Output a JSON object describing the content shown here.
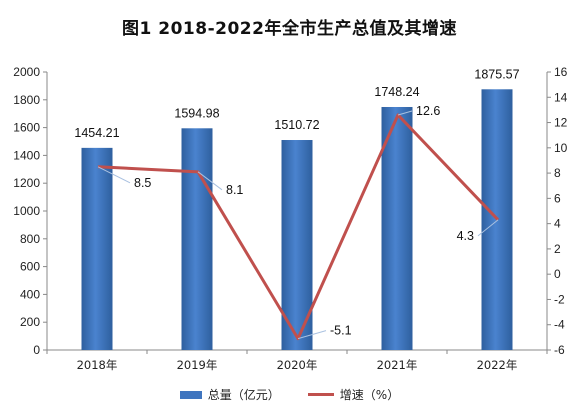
{
  "title": "图1  2018-2022年全市生产总值及其增速",
  "colors": {
    "bar": "#3f75bf",
    "bar_dark": "#2e5f9e",
    "line": "#c0504d",
    "axis": "#888888",
    "leader": "#a9c1e0"
  },
  "chart_data": {
    "type": "bar",
    "categories": [
      "2018年",
      "2019年",
      "2020年",
      "2021年",
      "2022年"
    ],
    "series": [
      {
        "name": "总量（亿元）",
        "type": "bar",
        "axis": "left",
        "values": [
          1454.21,
          1594.98,
          1510.72,
          1748.24,
          1875.57
        ],
        "labels": [
          "1454.21",
          "1594.98",
          "1510.72",
          "1748.24",
          "1875.57"
        ]
      },
      {
        "name": "增速（%）",
        "type": "line",
        "axis": "right",
        "values": [
          8.5,
          8.1,
          -5.1,
          12.6,
          4.3
        ],
        "labels": [
          "8.5",
          "8.1",
          "-5.1",
          "12.6",
          "4.3"
        ]
      }
    ],
    "y_left": {
      "range": [
        0,
        2000
      ],
      "ticks": [
        "0",
        "200",
        "400",
        "600",
        "800",
        "1000",
        "1200",
        "1400",
        "1600",
        "1800",
        "2000"
      ]
    },
    "y_right": {
      "range": [
        -6,
        16
      ],
      "ticks": [
        "-6",
        "-4",
        "-2",
        "0",
        "2",
        "4",
        "6",
        "8",
        "10",
        "12",
        "14",
        "16"
      ]
    },
    "legend_position": "bottom",
    "grid": false
  }
}
